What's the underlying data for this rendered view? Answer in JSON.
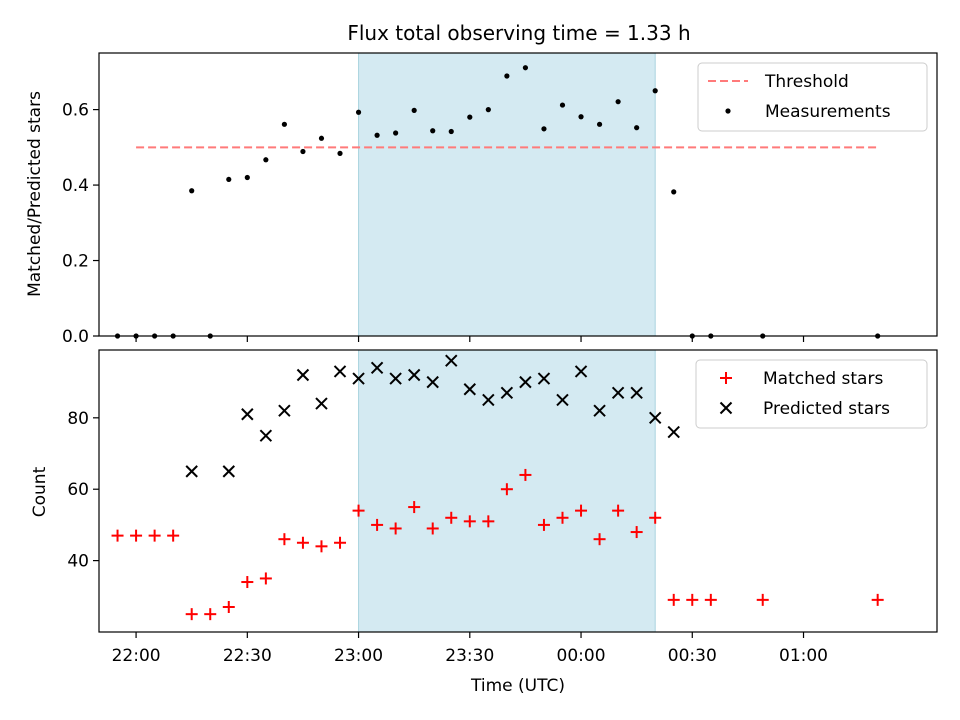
{
  "chart_data": [
    {
      "type": "scatter",
      "title": "Flux total observing time = 1.33 h",
      "xlabel": "",
      "ylabel": "Matched/Predicted stars",
      "xlim": [
        "21:50",
        "01:36"
      ],
      "ylim": [
        0,
        0.75
      ],
      "yticks": [
        0.0,
        0.2,
        0.4,
        0.6
      ],
      "ytick_labels": [
        "0.0",
        "0.2",
        "0.4",
        "0.6"
      ],
      "shaded_interval": [
        "23:00",
        "00:20"
      ],
      "shade_color": "#d4eaf2",
      "legend_position": "top-right",
      "legend": [
        "Threshold",
        "Measurements"
      ],
      "threshold": {
        "name": "Threshold",
        "y": 0.5,
        "x": [
          "22:00",
          "01:20"
        ],
        "color": "#ff7a7a",
        "style": "dashed"
      },
      "series": [
        {
          "name": "Measurements",
          "marker": "dot",
          "color": "#000000",
          "points": [
            [
              "21:55",
              0.0
            ],
            [
              "22:00",
              0.0
            ],
            [
              "22:05",
              0.0
            ],
            [
              "22:10",
              0.0
            ],
            [
              "22:15",
              0.385
            ],
            [
              "22:20",
              0.0
            ],
            [
              "22:25",
              0.415
            ],
            [
              "22:30",
              0.42
            ],
            [
              "22:35",
              0.467
            ],
            [
              "22:40",
              0.561
            ],
            [
              "22:45",
              0.489
            ],
            [
              "22:50",
              0.524
            ],
            [
              "22:55",
              0.484
            ],
            [
              "23:00",
              0.593
            ],
            [
              "23:05",
              0.532
            ],
            [
              "23:10",
              0.538
            ],
            [
              "23:15",
              0.598
            ],
            [
              "23:20",
              0.544
            ],
            [
              "23:25",
              0.542
            ],
            [
              "23:30",
              0.58
            ],
            [
              "23:35",
              0.6
            ],
            [
              "23:40",
              0.689
            ],
            [
              "23:45",
              0.711
            ],
            [
              "23:50",
              0.549
            ],
            [
              "23:55",
              0.612
            ],
            [
              "00:00",
              0.581
            ],
            [
              "00:05",
              0.561
            ],
            [
              "00:10",
              0.621
            ],
            [
              "00:15",
              0.552
            ],
            [
              "00:20",
              0.65
            ],
            [
              "00:25",
              0.382
            ],
            [
              "00:30",
              0.0
            ],
            [
              "00:35",
              0.0
            ],
            [
              "00:49",
              0.0
            ],
            [
              "01:20",
              0.0
            ]
          ]
        }
      ]
    },
    {
      "type": "scatter",
      "title": "",
      "xlabel": "Time (UTC)",
      "ylabel": "Count",
      "xlim": [
        "21:50",
        "01:36"
      ],
      "ylim": [
        20,
        99
      ],
      "xticks": [
        "22:00",
        "22:30",
        "23:00",
        "23:30",
        "00:00",
        "00:30",
        "01:00"
      ],
      "yticks": [
        40,
        60,
        80
      ],
      "ytick_labels": [
        "40",
        "60",
        "80"
      ],
      "shaded_interval": [
        "23:00",
        "00:20"
      ],
      "shade_color": "#d4eaf2",
      "legend_position": "top-right",
      "legend": [
        "Matched stars",
        "Predicted stars"
      ],
      "series": [
        {
          "name": "Matched stars",
          "marker": "plus",
          "color": "#ff0000",
          "points": [
            [
              "21:55",
              47
            ],
            [
              "22:00",
              47
            ],
            [
              "22:05",
              47
            ],
            [
              "22:10",
              47
            ],
            [
              "22:15",
              25
            ],
            [
              "22:20",
              25
            ],
            [
              "22:25",
              27
            ],
            [
              "22:30",
              34
            ],
            [
              "22:35",
              35
            ],
            [
              "22:40",
              46
            ],
            [
              "22:45",
              45
            ],
            [
              "22:50",
              44
            ],
            [
              "22:55",
              45
            ],
            [
              "23:00",
              54
            ],
            [
              "23:05",
              50
            ],
            [
              "23:10",
              49
            ],
            [
              "23:15",
              55
            ],
            [
              "23:20",
              49
            ],
            [
              "23:25",
              52
            ],
            [
              "23:30",
              51
            ],
            [
              "23:35",
              51
            ],
            [
              "23:40",
              60
            ],
            [
              "23:45",
              64
            ],
            [
              "23:50",
              50
            ],
            [
              "23:55",
              52
            ],
            [
              "00:00",
              54
            ],
            [
              "00:05",
              46
            ],
            [
              "00:10",
              54
            ],
            [
              "00:15",
              48
            ],
            [
              "00:20",
              52
            ],
            [
              "00:25",
              29
            ],
            [
              "00:30",
              29
            ],
            [
              "00:35",
              29
            ],
            [
              "00:49",
              29
            ],
            [
              "01:20",
              29
            ]
          ]
        },
        {
          "name": "Predicted stars",
          "marker": "x",
          "color": "#000000",
          "points": [
            [
              "22:15",
              65
            ],
            [
              "22:25",
              65
            ],
            [
              "22:30",
              81
            ],
            [
              "22:35",
              75
            ],
            [
              "22:40",
              82
            ],
            [
              "22:45",
              92
            ],
            [
              "22:50",
              84
            ],
            [
              "22:55",
              93
            ],
            [
              "23:00",
              91
            ],
            [
              "23:05",
              94
            ],
            [
              "23:10",
              91
            ],
            [
              "23:15",
              92
            ],
            [
              "23:20",
              90
            ],
            [
              "23:25",
              96
            ],
            [
              "23:30",
              88
            ],
            [
              "23:35",
              85
            ],
            [
              "23:40",
              87
            ],
            [
              "23:45",
              90
            ],
            [
              "23:50",
              91
            ],
            [
              "23:55",
              85
            ],
            [
              "00:00",
              93
            ],
            [
              "00:05",
              82
            ],
            [
              "00:10",
              87
            ],
            [
              "00:15",
              87
            ],
            [
              "00:20",
              80
            ],
            [
              "00:25",
              76
            ]
          ]
        }
      ]
    }
  ]
}
